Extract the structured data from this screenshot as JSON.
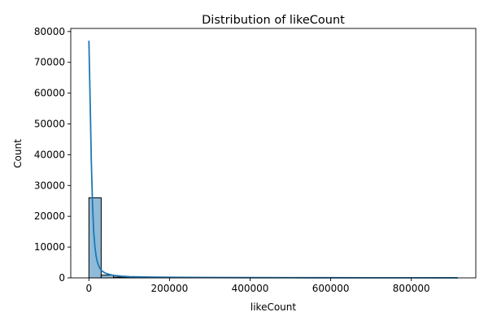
{
  "chart_data": {
    "type": "bar",
    "title": "Distribution of likeCount",
    "xlabel": "likeCount",
    "ylabel": "Count",
    "xlim": [
      -45000,
      960000
    ],
    "ylim": [
      0,
      81000
    ],
    "grid": false,
    "x_ticks": [
      0,
      200000,
      400000,
      600000,
      800000
    ],
    "x_tick_labels": [
      "0",
      "200000",
      "400000",
      "600000",
      "800000"
    ],
    "y_ticks": [
      0,
      10000,
      20000,
      30000,
      40000,
      50000,
      60000,
      70000,
      80000
    ],
    "y_tick_labels": [
      "0",
      "10000",
      "20000",
      "30000",
      "40000",
      "50000",
      "60000",
      "70000",
      "80000"
    ],
    "histogram": {
      "bin_start": 0,
      "bin_width": 30500,
      "counts": [
        26000,
        900,
        250,
        120,
        70,
        45,
        30,
        20,
        15,
        10,
        8,
        6,
        5,
        4,
        3,
        3,
        2,
        2,
        2,
        1,
        1,
        1,
        1,
        1,
        1,
        1,
        1,
        1,
        1,
        1
      ],
      "fill_color": "#1f77b4",
      "fill_opacity": 0.5,
      "edge_color": "#000000"
    },
    "kde": {
      "name": "",
      "color": "#1f77b4",
      "x": [
        0,
        3000,
        6000,
        9000,
        12000,
        15000,
        18000,
        21000,
        24000,
        27000,
        30000,
        35000,
        40000,
        50000,
        60000,
        80000,
        100000,
        150000,
        200000,
        300000,
        400000,
        500000,
        600000,
        700000,
        800000,
        915000
      ],
      "y": [
        77000,
        58000,
        38000,
        24000,
        15000,
        10000,
        7000,
        5200,
        4000,
        3200,
        2600,
        2000,
        1600,
        1150,
        850,
        550,
        400,
        250,
        180,
        110,
        80,
        60,
        50,
        40,
        30,
        20
      ]
    }
  }
}
